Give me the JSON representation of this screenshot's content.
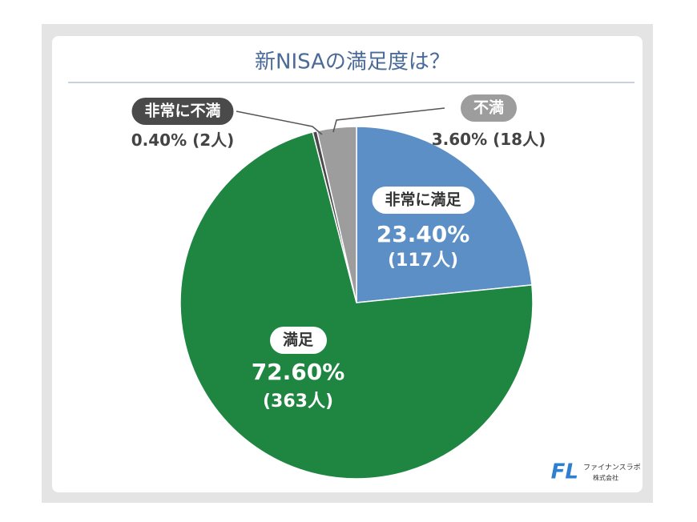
{
  "chart_data": {
    "type": "pie",
    "title": "新NISAの満足度は？",
    "categories": [
      "非常に満足",
      "満足",
      "非常に不満",
      "不満"
    ],
    "values": [
      23.4,
      72.6,
      0.4,
      3.6
    ],
    "value_labels": [
      "23.40%",
      "72.60%",
      "0.40%",
      "3.60%"
    ],
    "counts": [
      117,
      363,
      2,
      18
    ],
    "count_labels": [
      "(117人)",
      "(363人)",
      "(2人)",
      "(18人)"
    ],
    "colors": [
      "#5b8fc6",
      "#1f8642",
      "#4a4a4a",
      "#9d9d9d"
    ],
    "start_angle": 0,
    "direction": "clockwise"
  },
  "logo": {
    "mark": "FL",
    "name": "ファイナンスラボ",
    "sub": "株式会社"
  }
}
